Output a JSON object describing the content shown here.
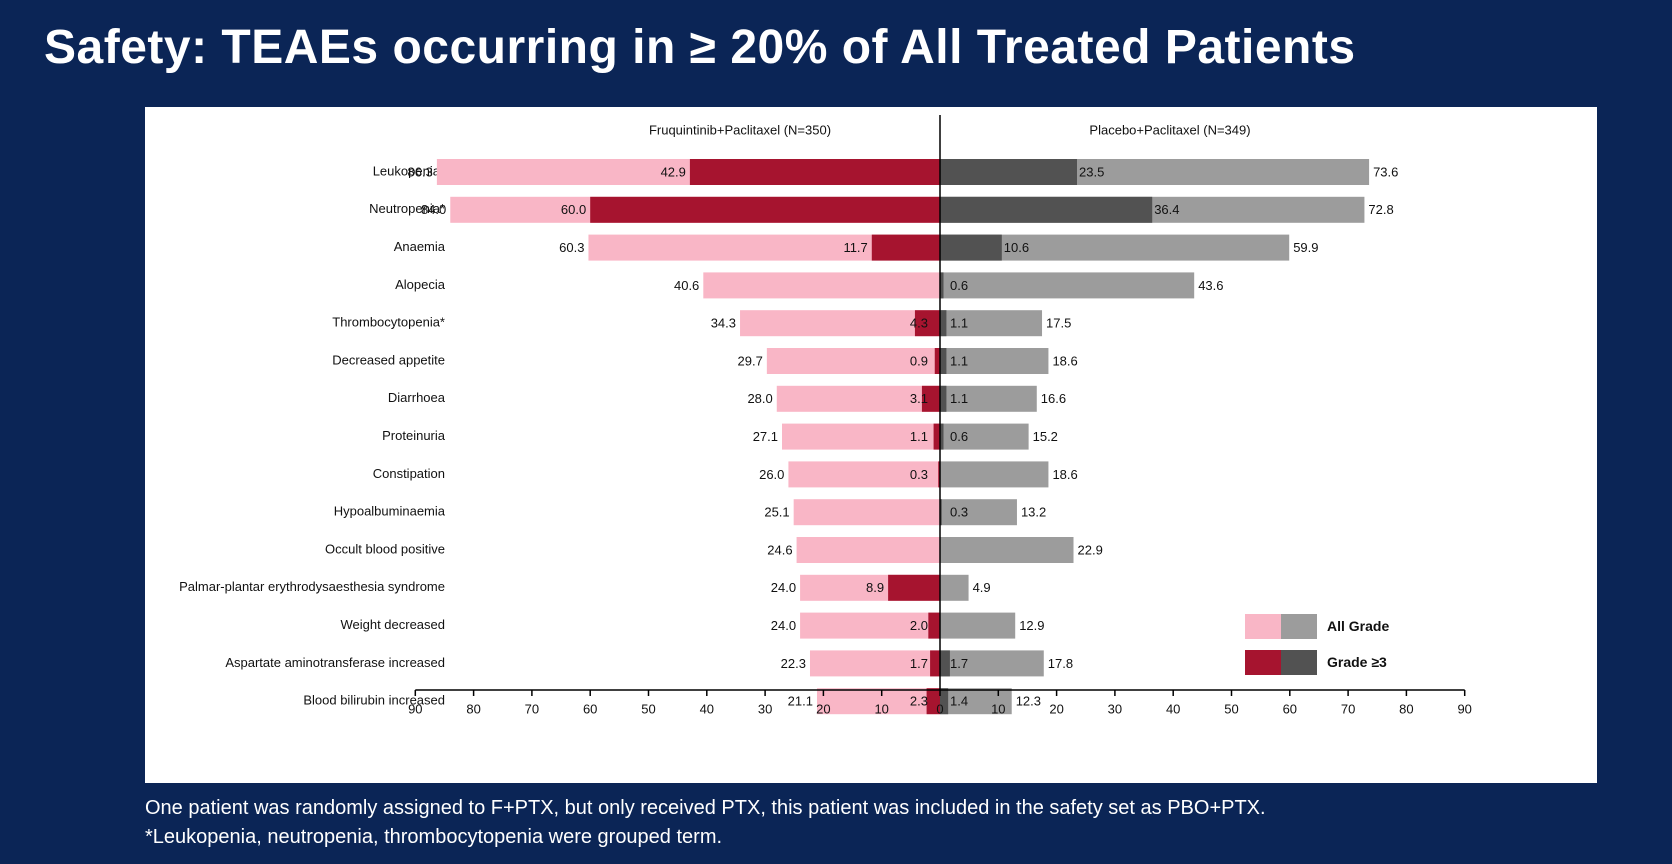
{
  "title": "Safety: TEAEs occurring in ≥ 20% of All Treated Patients",
  "footnotes": [
    "One patient was randomly assigned to F+PTX, but only received PTX, this patient was included in the safety set as PBO+PTX.",
    "*Leukopenia, neutropenia, thrombocytopenia were grouped term."
  ],
  "colors": {
    "left_all": "#f9b6c6",
    "left_g3": "#a6142f",
    "right_all": "#9c9c9c",
    "right_g3": "#525252",
    "background": "#0b2556"
  },
  "chart_data": {
    "type": "bar",
    "orientation": "horizontal-butterfly",
    "groups": [
      "Fruquintinib+Paclitaxel (N=350)",
      "Placebo+Paclitaxel (N=349)"
    ],
    "categories": [
      "Leukopenia*",
      "Neutropenia*",
      "Anaemia",
      "Alopecia",
      "Thrombocytopenia*",
      "Decreased appetite",
      "Diarrhoea",
      "Proteinuria",
      "Constipation",
      "Hypoalbuminaemia",
      "Occult blood positive",
      "Palmar-plantar erythrodysaesthesia syndrome",
      "Weight decreased",
      "Aspartate aminotransferase increased",
      "Blood bilirubin increased"
    ],
    "series": [
      {
        "name": "Fruquintinib+Paclitaxel All Grade",
        "side": "left",
        "grade": "all",
        "values": [
          86.3,
          84.0,
          60.3,
          40.6,
          34.3,
          29.7,
          28.0,
          27.1,
          26.0,
          25.1,
          24.6,
          24.0,
          24.0,
          22.3,
          21.1
        ],
        "labels": [
          "86.3",
          "84.0",
          "60.3",
          "40.6",
          "34.3",
          "29.7",
          "28.0",
          "27.1",
          "26.0",
          "25.1",
          "24.6",
          "24.0",
          "24.0",
          "22.3",
          "21.1"
        ]
      },
      {
        "name": "Fruquintinib+Paclitaxel Grade ≥3",
        "side": "left",
        "grade": "g3",
        "values": [
          42.9,
          60.0,
          11.7,
          0,
          4.3,
          0.9,
          3.1,
          1.1,
          0.3,
          0,
          0,
          8.9,
          2.0,
          1.7,
          2.3
        ],
        "labels": [
          "42.9",
          "60.0",
          "11.7",
          "",
          "4.3",
          "0.9",
          "3.1",
          "1.1",
          "0.3",
          "",
          "",
          "8.9",
          "2.0",
          "1.7",
          "2.3"
        ]
      },
      {
        "name": "Placebo+Paclitaxel All Grade",
        "side": "right",
        "grade": "all",
        "values": [
          73.6,
          72.8,
          59.9,
          43.6,
          17.5,
          18.6,
          16.6,
          15.2,
          18.6,
          13.2,
          22.9,
          4.9,
          12.9,
          17.8,
          12.3
        ],
        "labels": [
          "73.6",
          "72.8",
          "59.9",
          "43.6",
          "17.5",
          "18.6",
          "16.6",
          "15.2",
          "18.6",
          "13.2",
          "22.9",
          "4.9",
          "12.9",
          "17.8",
          "12.3"
        ]
      },
      {
        "name": "Placebo+Paclitaxel Grade ≥3",
        "side": "right",
        "grade": "g3",
        "values": [
          23.5,
          36.4,
          10.6,
          0.6,
          1.1,
          1.1,
          1.1,
          0.6,
          0,
          0.3,
          0,
          0,
          0,
          1.7,
          1.4
        ],
        "labels": [
          "23.5",
          "36.4",
          "10.6",
          "0.6",
          "1.1",
          "1.1",
          "1.1",
          "0.6",
          "",
          "0.3",
          "",
          "",
          "",
          "1.7",
          "1.4"
        ]
      }
    ],
    "xticks": [
      "90",
      "80",
      "70",
      "60",
      "50",
      "40",
      "30",
      "20",
      "10",
      "0",
      "10",
      "20",
      "30",
      "40",
      "50",
      "60",
      "70",
      "80",
      "90"
    ],
    "xlim": [
      -90,
      90
    ],
    "legend": [
      {
        "label": "All Grade",
        "grade": "all"
      },
      {
        "label": "Grade ≥3",
        "grade": "g3"
      }
    ],
    "legend_position": "bottom-right"
  }
}
